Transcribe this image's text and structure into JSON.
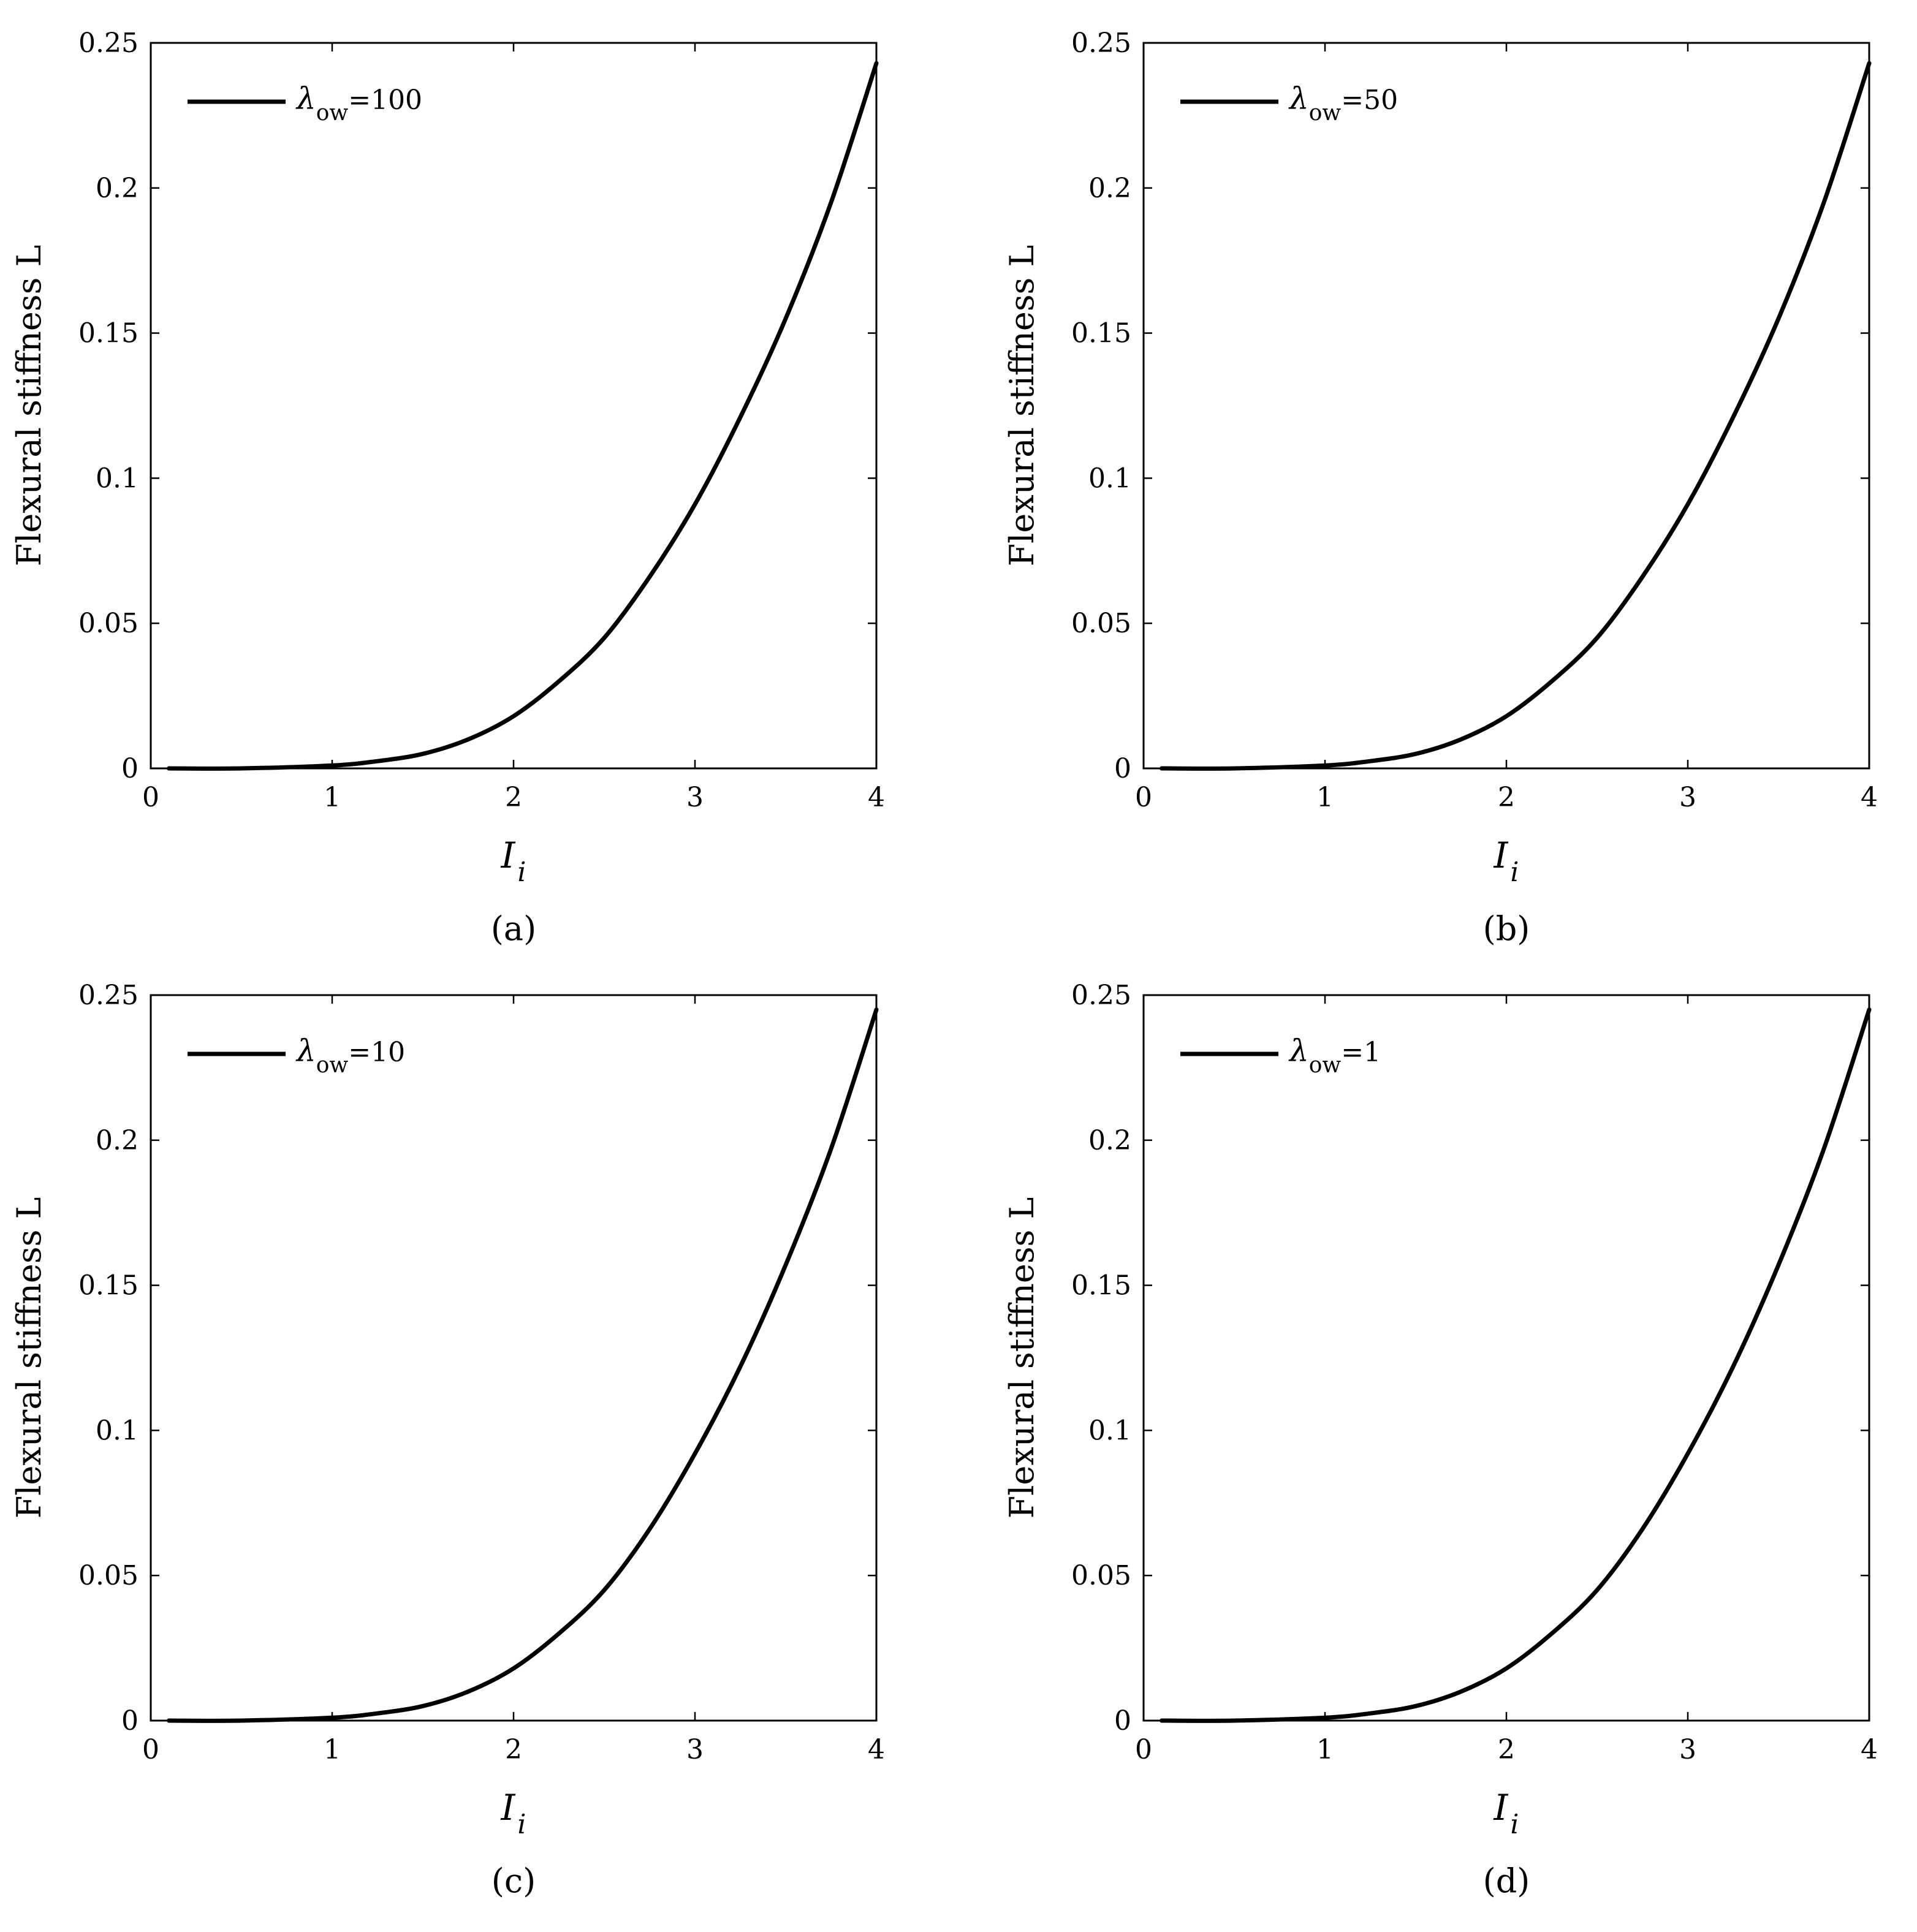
{
  "figure": {
    "chart_data": [
      {
        "type": "line",
        "caption": "(a)",
        "xlabel": "I",
        "xlabel_sub": "i",
        "ylabel": "Flexural stiffness L",
        "xlim": [
          0,
          4
        ],
        "ylim": [
          0,
          0.25
        ],
        "xticks": [
          "0",
          "1",
          "2",
          "3",
          "4"
        ],
        "yticks": [
          "0",
          "0.05",
          "0.1",
          "0.15",
          "0.2",
          "0.25"
        ],
        "grid": false,
        "legend_position": "top-left",
        "series": [
          {
            "legend_symbol": "λ",
            "legend_sub": "ow",
            "legend_value": "=100",
            "color": "#000000",
            "x": [
              0.1,
              0.5,
              1.0,
              1.25,
              1.5,
              1.75,
              2.0,
              2.25,
              2.5,
              2.75,
              3.0,
              3.25,
              3.5,
              3.75,
              4.0
            ],
            "y": [
              0.0,
              0.0,
              0.001,
              0.0025,
              0.005,
              0.01,
              0.018,
              0.03,
              0.045,
              0.066,
              0.091,
              0.121,
              0.155,
              0.195,
              0.243
            ]
          }
        ]
      },
      {
        "type": "line",
        "caption": "(b)",
        "xlabel": "I",
        "xlabel_sub": "i",
        "ylabel": "Flexural stiffness L",
        "xlim": [
          0,
          4
        ],
        "ylim": [
          0,
          0.25
        ],
        "xticks": [
          "0",
          "1",
          "2",
          "3",
          "4"
        ],
        "yticks": [
          "0",
          "0.05",
          "0.1",
          "0.15",
          "0.2",
          "0.25"
        ],
        "grid": false,
        "legend_position": "top-left",
        "series": [
          {
            "legend_symbol": "λ",
            "legend_sub": "ow",
            "legend_value": "=50",
            "color": "#000000",
            "x": [
              0.1,
              0.5,
              1.0,
              1.25,
              1.5,
              1.75,
              2.0,
              2.25,
              2.5,
              2.75,
              3.0,
              3.25,
              3.5,
              3.75,
              4.0
            ],
            "y": [
              0.0,
              0.0,
              0.001,
              0.0025,
              0.005,
              0.01,
              0.018,
              0.03,
              0.045,
              0.066,
              0.091,
              0.121,
              0.155,
              0.195,
              0.243
            ]
          }
        ]
      },
      {
        "type": "line",
        "caption": "(c)",
        "xlabel": "I",
        "xlabel_sub": "i",
        "ylabel": "Flexural stiffness L",
        "xlim": [
          0,
          4
        ],
        "ylim": [
          0,
          0.25
        ],
        "xticks": [
          "0",
          "1",
          "2",
          "3",
          "4"
        ],
        "yticks": [
          "0",
          "0.05",
          "0.1",
          "0.15",
          "0.2",
          "0.25"
        ],
        "grid": false,
        "legend_position": "top-left",
        "series": [
          {
            "legend_symbol": "λ",
            "legend_sub": "ow",
            "legend_value": "=10",
            "color": "#000000",
            "x": [
              0.1,
              0.5,
              1.0,
              1.25,
              1.5,
              1.75,
              2.0,
              2.25,
              2.5,
              2.75,
              3.0,
              3.25,
              3.5,
              3.75,
              4.0
            ],
            "y": [
              0.0,
              0.0,
              0.001,
              0.0025,
              0.005,
              0.01,
              0.018,
              0.03,
              0.045,
              0.066,
              0.092,
              0.122,
              0.157,
              0.197,
              0.245
            ]
          }
        ]
      },
      {
        "type": "line",
        "caption": "(d)",
        "xlabel": "I",
        "xlabel_sub": "i",
        "ylabel": "Flexural stiffness L",
        "xlim": [
          0,
          4
        ],
        "ylim": [
          0,
          0.25
        ],
        "xticks": [
          "0",
          "1",
          "2",
          "3",
          "4"
        ],
        "yticks": [
          "0",
          "0.05",
          "0.1",
          "0.15",
          "0.2",
          "0.25"
        ],
        "grid": false,
        "legend_position": "top-left",
        "series": [
          {
            "legend_symbol": "λ",
            "legend_sub": "ow",
            "legend_value": "=1",
            "color": "#000000",
            "x": [
              0.1,
              0.5,
              1.0,
              1.25,
              1.5,
              1.75,
              2.0,
              2.25,
              2.5,
              2.75,
              3.0,
              3.25,
              3.5,
              3.75,
              4.0
            ],
            "y": [
              0.0,
              0.0,
              0.001,
              0.0025,
              0.005,
              0.01,
              0.018,
              0.03,
              0.045,
              0.066,
              0.092,
              0.122,
              0.157,
              0.197,
              0.245
            ]
          }
        ]
      }
    ]
  }
}
